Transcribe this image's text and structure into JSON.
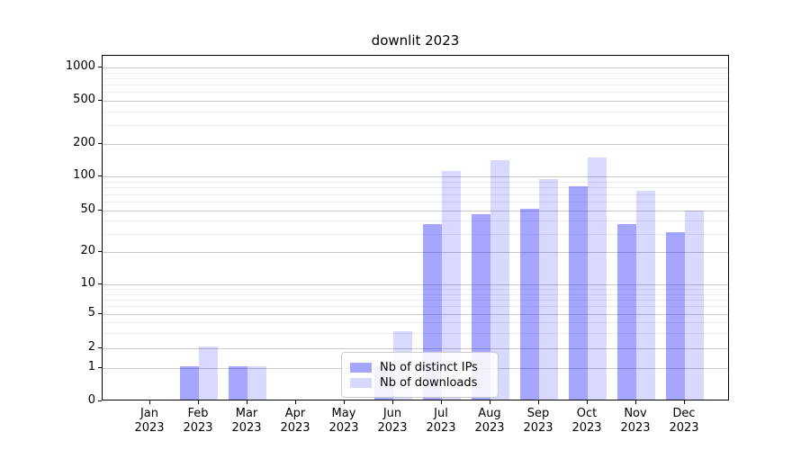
{
  "title": "downlit 2023",
  "legend": {
    "items": [
      {
        "label": "Nb of distinct IPs",
        "color": "rgba(0,0,255,0.35)"
      },
      {
        "label": "Nb of downloads",
        "color": "rgba(0,0,255,0.15)"
      }
    ]
  },
  "chart_data": {
    "type": "bar",
    "title": "downlit 2023",
    "categories": [
      "Jan",
      "Feb",
      "Mar",
      "Apr",
      "May",
      "Jun",
      "Jul",
      "Aug",
      "Sep",
      "Oct",
      "Nov",
      "Dec"
    ],
    "year": "2023",
    "series": [
      {
        "name": "Nb of distinct IPs",
        "color": "rgba(0,0,255,0.35)",
        "values": [
          0,
          1,
          1,
          0,
          0,
          1,
          36,
          44,
          50,
          79,
          36,
          30
        ]
      },
      {
        "name": "Nb of downloads",
        "color": "rgba(0,0,255,0.15)",
        "values": [
          0,
          2,
          1,
          0,
          0,
          3,
          108,
          137,
          91,
          145,
          72,
          48
        ]
      }
    ],
    "xlabel": "",
    "ylabel": "",
    "yscale": "log-like (0, then log decades)",
    "ylim": [
      0,
      1000
    ],
    "ytick_values": [
      0,
      1,
      2,
      5,
      10,
      20,
      50,
      100,
      200,
      500,
      1000
    ],
    "yminor_values": [
      3,
      4,
      6,
      7,
      8,
      9,
      30,
      40,
      60,
      70,
      80,
      90,
      300,
      400,
      600,
      700,
      800,
      900
    ],
    "grid": true,
    "legend_position": "lower center"
  }
}
